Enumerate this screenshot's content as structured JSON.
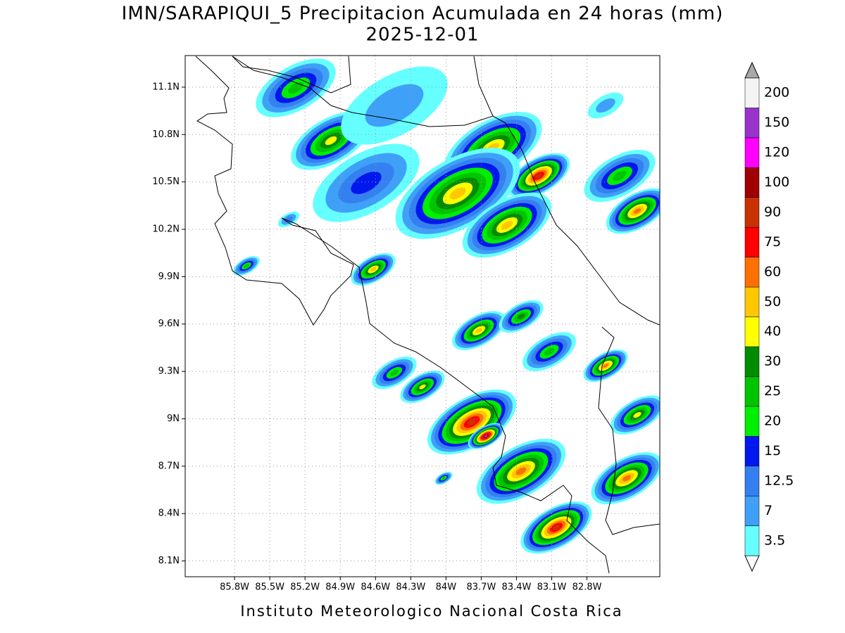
{
  "title": "IMN/SARAPIQUI_5 Precipitacion Acumulada en 24 horas (mm)",
  "subtitle": "2025-12-01",
  "footer": "Instituto Meteorologico Nacional Costa Rica",
  "map": {
    "xlim": [
      -86.22,
      -82.18
    ],
    "ylim": [
      8.0,
      11.3
    ],
    "xticks": [
      {
        "value": -85.8,
        "label": "85.8W"
      },
      {
        "value": -85.5,
        "label": "85.5W"
      },
      {
        "value": -85.2,
        "label": "85.2W"
      },
      {
        "value": -84.9,
        "label": "84.9W"
      },
      {
        "value": -84.6,
        "label": "84.6W"
      },
      {
        "value": -84.3,
        "label": "84.3W"
      },
      {
        "value": -84.0,
        "label": "84W"
      },
      {
        "value": -83.7,
        "label": "83.7W"
      },
      {
        "value": -83.4,
        "label": "83.4W"
      },
      {
        "value": -83.1,
        "label": "83.1W"
      },
      {
        "value": -82.8,
        "label": "82.8W"
      }
    ],
    "yticks": [
      {
        "value": 8.1,
        "label": "8.1N"
      },
      {
        "value": 8.4,
        "label": "8.4N"
      },
      {
        "value": 8.7,
        "label": "8.7N"
      },
      {
        "value": 9.0,
        "label": "9N"
      },
      {
        "value": 9.3,
        "label": "9.3N"
      },
      {
        "value": 9.6,
        "label": "9.6N"
      },
      {
        "value": 9.9,
        "label": "9.9N"
      },
      {
        "value": 10.2,
        "label": "10.2N"
      },
      {
        "value": 10.5,
        "label": "10.5N"
      },
      {
        "value": 10.8,
        "label": "10.8N"
      },
      {
        "value": 11.1,
        "label": "11.1N"
      }
    ],
    "grid": true
  },
  "colorbar": {
    "levels": [
      3.5,
      7,
      12.5,
      15,
      20,
      25,
      30,
      40,
      50,
      60,
      75,
      90,
      100,
      120,
      150,
      200
    ],
    "colors": [
      "#66ffff",
      "#3fa0f8",
      "#3580f0",
      "#0018ee",
      "#00ee00",
      "#00c400",
      "#008c00",
      "#ffff00",
      "#ffc800",
      "#ff7000",
      "#ff0000",
      "#c83200",
      "#a00000",
      "#ff00ff",
      "#9933cc",
      "#f4f4f4"
    ],
    "over_color": "#a8a8a8"
  }
}
